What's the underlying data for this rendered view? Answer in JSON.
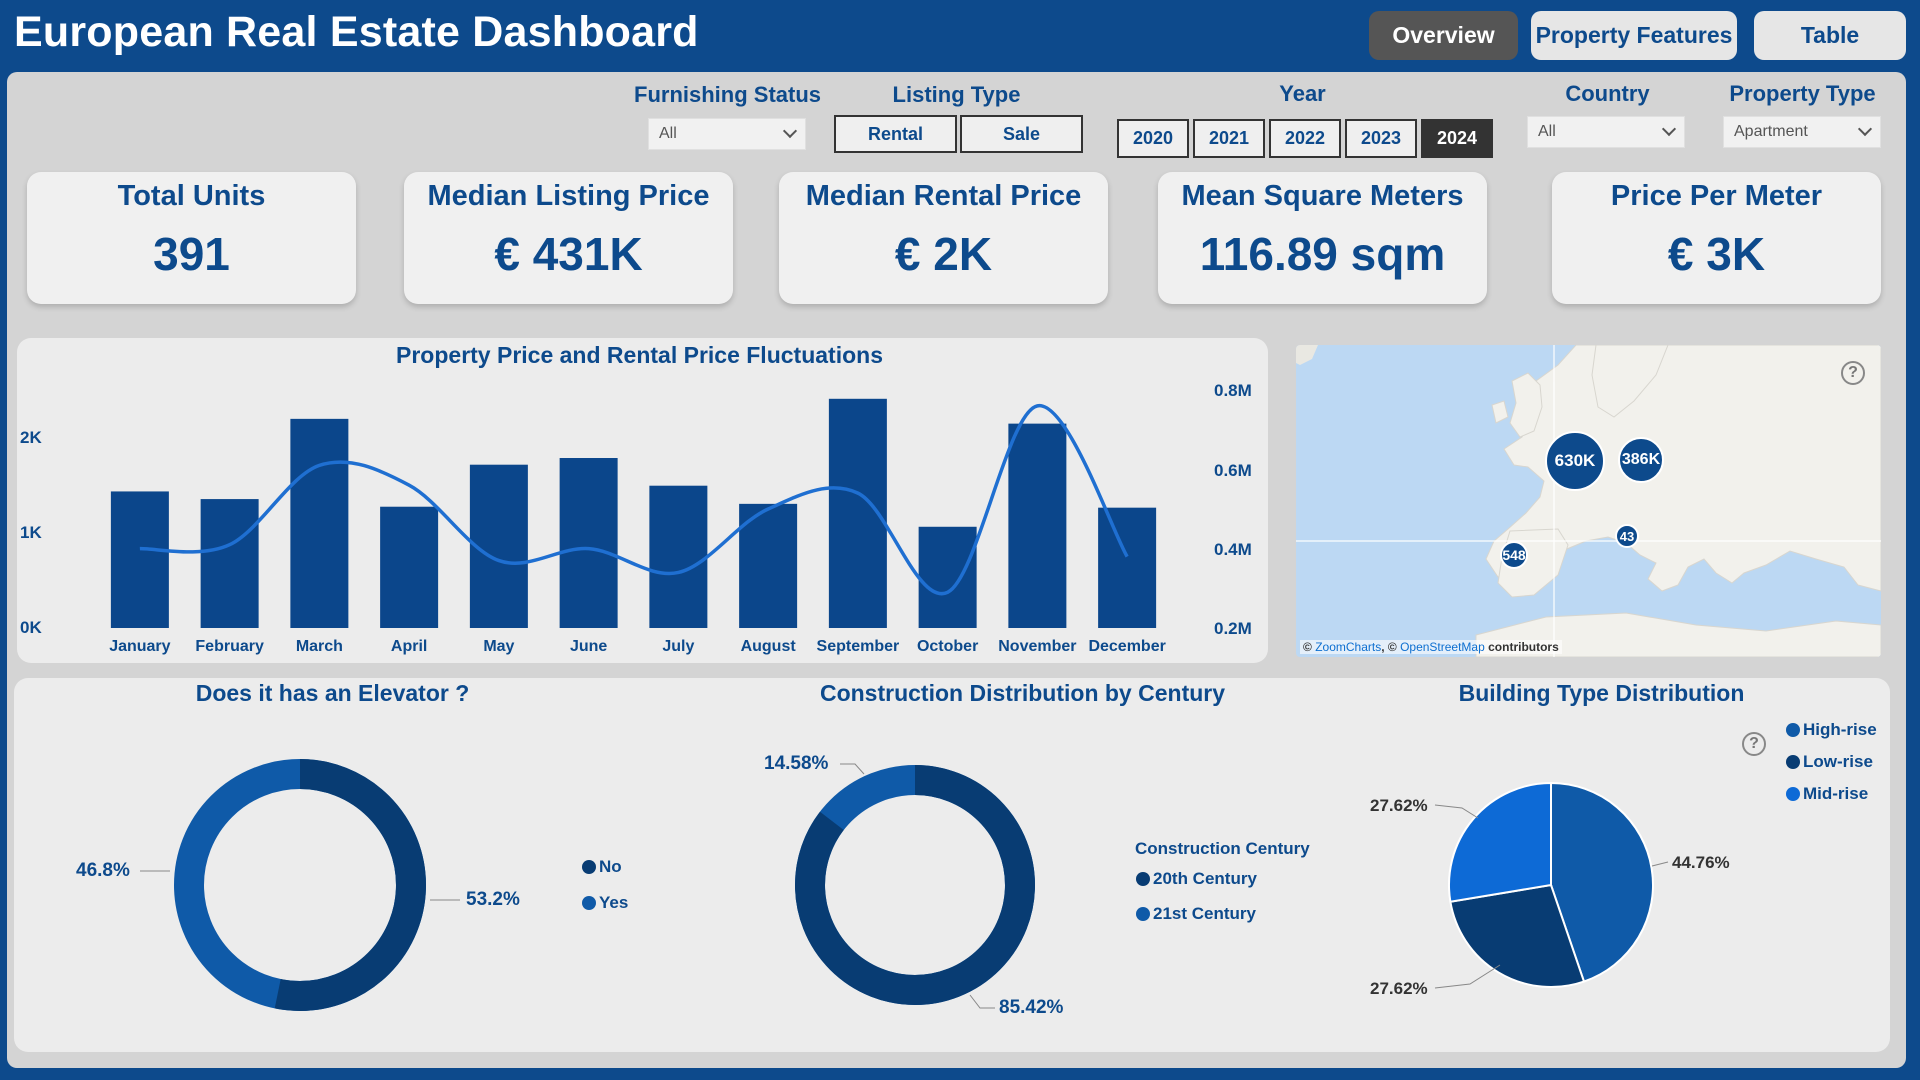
{
  "header": {
    "title": "European Real Estate Dashboard",
    "nav": [
      {
        "label": "Overview",
        "active": true
      },
      {
        "label": "Property Features",
        "active": false
      },
      {
        "label": "Table",
        "active": false
      }
    ]
  },
  "filters": {
    "furnishing": {
      "label": "Furnishing Status",
      "value": "All"
    },
    "listing_type": {
      "label": "Listing Type",
      "options": [
        "Rental",
        "Sale"
      ]
    },
    "year": {
      "label": "Year",
      "options": [
        "2020",
        "2021",
        "2022",
        "2023",
        "2024"
      ],
      "selected": "2024"
    },
    "country": {
      "label": "Country",
      "value": "All"
    },
    "property_type": {
      "label": "Property Type",
      "value": "Apartment"
    }
  },
  "kpis": [
    {
      "label": "Total Units",
      "value": "391"
    },
    {
      "label": "Median Listing Price",
      "value": "€ 431K"
    },
    {
      "label": "Median Rental Price",
      "value": "€ 2K"
    },
    {
      "label": "Mean Square Meters",
      "value": "116.89 sqm"
    },
    {
      "label": "Price Per Meter",
      "value": "€ 3K"
    }
  ],
  "colors": {
    "primary": "#0d4a8c",
    "bar": "#0b468b",
    "line": "#1f6fd1",
    "donut_dark": "#083c73",
    "donut_mid": "#0f5aa8",
    "pie_light": "#0d6ad6"
  },
  "map": {
    "bubbles": [
      "630K",
      "386K",
      "548",
      "43"
    ],
    "attribution": {
      "prefix": "© ",
      "zoomcharts": "ZoomCharts",
      "sep": ", © ",
      "osm": "OpenStreetMap",
      "suffix": " contributors"
    }
  },
  "elevator": {
    "title": "Does it has an Elevator ?",
    "labels": [
      "No",
      "Yes"
    ],
    "percents": [
      "53.2%",
      "46.8%"
    ],
    "values": [
      53.2,
      46.8
    ]
  },
  "century": {
    "title": "Construction Distribution by Century",
    "legend_title": "Construction Century",
    "labels": [
      "20th Century",
      "21st Century"
    ],
    "percents": [
      "85.42%",
      "14.58%"
    ],
    "values": [
      85.42,
      14.58
    ]
  },
  "building": {
    "title": "Building Type Distribution",
    "labels": [
      "High-rise",
      "Low-rise",
      "Mid-rise"
    ],
    "percents": [
      "44.76%",
      "27.62%",
      "27.62%"
    ],
    "values": [
      44.76,
      27.62,
      27.62
    ]
  },
  "chart_data": {
    "type": "bar",
    "title": "Property Price and Rental Price Fluctuations",
    "categories": [
      "January",
      "February",
      "March",
      "April",
      "May",
      "June",
      "July",
      "August",
      "September",
      "October",
      "November",
      "December"
    ],
    "series": [
      {
        "name": "Rental Price",
        "type": "bar",
        "axis": "left",
        "values": [
          1430,
          1350,
          2190,
          1270,
          1710,
          1780,
          1490,
          1300,
          2400,
          1060,
          2140,
          1260
        ]
      },
      {
        "name": "Property Price",
        "type": "line",
        "axis": "right",
        "values": [
          0.4,
          0.41,
          0.61,
          0.56,
          0.37,
          0.4,
          0.34,
          0.5,
          0.54,
          0.29,
          0.76,
          0.38
        ]
      }
    ],
    "y_left": {
      "ticks": [
        "0K",
        "1K",
        "2K"
      ],
      "ylim": [
        0,
        2500
      ]
    },
    "y_right": {
      "ticks": [
        "0.2M",
        "0.4M",
        "0.6M",
        "0.8M"
      ],
      "ylim": [
        0.2,
        0.8
      ]
    },
    "xlabel": "",
    "ylabel": ""
  }
}
